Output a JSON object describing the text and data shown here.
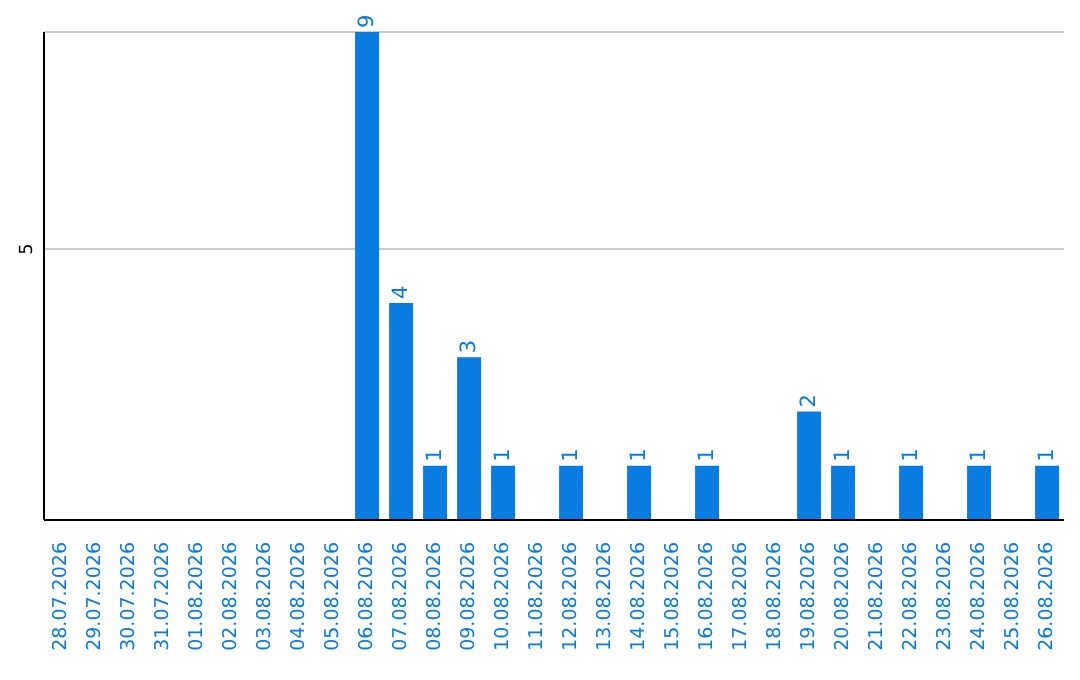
{
  "chart_data": {
    "type": "bar",
    "categories": [
      "28.07.2026",
      "29.07.2026",
      "30.07.2026",
      "31.07.2026",
      "01.08.2026",
      "02.08.2026",
      "03.08.2026",
      "04.08.2026",
      "05.08.2026",
      "06.08.2026",
      "07.08.2026",
      "08.08.2026",
      "09.08.2026",
      "10.08.2026",
      "11.08.2026",
      "12.08.2026",
      "13.08.2026",
      "14.08.2026",
      "15.08.2026",
      "16.08.2026",
      "17.08.2026",
      "18.08.2026",
      "19.08.2026",
      "20.08.2026",
      "21.08.2026",
      "22.08.2026",
      "23.08.2026",
      "24.08.2026",
      "25.08.2026",
      "26.08.2026"
    ],
    "values": [
      0,
      0,
      0,
      0,
      0,
      0,
      0,
      0,
      0,
      9,
      4,
      1,
      3,
      1,
      0,
      1,
      0,
      1,
      0,
      1,
      0,
      0,
      2,
      1,
      0,
      1,
      0,
      1,
      0,
      1
    ],
    "value_labels": [
      null,
      null,
      null,
      null,
      null,
      null,
      null,
      null,
      null,
      "9",
      "4",
      "1",
      "3",
      "1",
      null,
      "1",
      null,
      "1",
      null,
      "1",
      null,
      null,
      "2",
      "1",
      null,
      "1",
      null,
      "1",
      null,
      "1"
    ],
    "color": "#0a7be0",
    "ylim": [
      0,
      9
    ],
    "yticks": [
      5
    ],
    "grid": "y"
  }
}
